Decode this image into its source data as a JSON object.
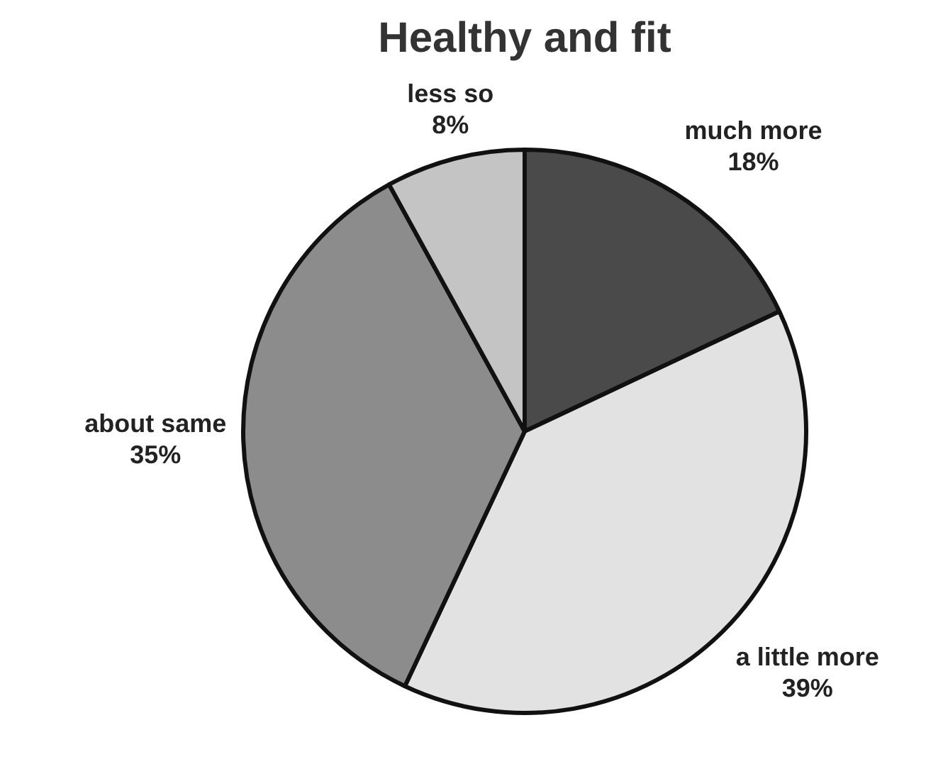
{
  "chart_data": {
    "type": "pie",
    "title": "Healthy and fit",
    "categories": [
      "much more",
      "a little more",
      "about same",
      "less so"
    ],
    "values": [
      18,
      39,
      35,
      8
    ],
    "value_labels": [
      "18%",
      "39%",
      "35%",
      "8%"
    ],
    "colors": [
      "#4a4a4a",
      "#e2e2e2",
      "#8c8c8c",
      "#c4c4c4"
    ],
    "legend": false
  }
}
